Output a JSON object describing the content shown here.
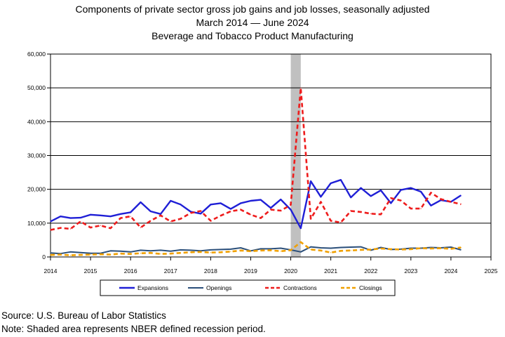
{
  "title": {
    "line1": "Components of private sector gross job gains and job losses, seasonally adjusted",
    "line2": "March 2014 — June 2024",
    "line3": "Beverage and Tobacco Product Manufacturing"
  },
  "notes": {
    "source": "Source: U.S. Bureau of Labor Statistics",
    "note": "Note: Shaded area represents NBER defined recession period."
  },
  "chart_data": {
    "type": "line",
    "ylim": [
      0,
      60000
    ],
    "yticks": [
      0,
      10000,
      20000,
      30000,
      40000,
      50000,
      60000
    ],
    "ytick_labels": [
      "0",
      "10,000",
      "20,000",
      "30,000",
      "40,000",
      "50,000",
      "60,000"
    ],
    "xlim": [
      2014,
      2025
    ],
    "xticks": [
      2014,
      2015,
      2016,
      2017,
      2018,
      2019,
      2020,
      2021,
      2022,
      2023,
      2024,
      2025
    ],
    "xtick_labels": [
      "2014",
      "2015",
      "2016",
      "2017",
      "2018",
      "2019",
      "2020",
      "2021",
      "2022",
      "2023",
      "2024",
      "2025"
    ],
    "grid": true,
    "legend_position": "bottom",
    "recession": {
      "start": 2020.0,
      "end": 2020.25,
      "color": "#c0c0c0"
    },
    "x": [
      "2014-Q1",
      "2014-Q2",
      "2014-Q3",
      "2014-Q4",
      "2015-Q1",
      "2015-Q2",
      "2015-Q3",
      "2015-Q4",
      "2016-Q1",
      "2016-Q2",
      "2016-Q3",
      "2016-Q4",
      "2017-Q1",
      "2017-Q2",
      "2017-Q3",
      "2017-Q4",
      "2018-Q1",
      "2018-Q2",
      "2018-Q3",
      "2018-Q4",
      "2019-Q1",
      "2019-Q2",
      "2019-Q3",
      "2019-Q4",
      "2020-Q1",
      "2020-Q2",
      "2020-Q3",
      "2020-Q4",
      "2021-Q1",
      "2021-Q2",
      "2021-Q3",
      "2021-Q4",
      "2022-Q1",
      "2022-Q2",
      "2022-Q3",
      "2022-Q4",
      "2023-Q1",
      "2023-Q2",
      "2023-Q3",
      "2023-Q4",
      "2024-Q1",
      "2024-Q2"
    ],
    "series": [
      {
        "name": "Expansions",
        "color": "#1f1fd6",
        "dash": "solid",
        "width": 2.4,
        "values": [
          10500,
          12000,
          11500,
          11600,
          12500,
          12300,
          12000,
          12700,
          13200,
          16200,
          13500,
          12700,
          16600,
          15500,
          13400,
          12800,
          15500,
          15900,
          14200,
          15900,
          16600,
          16900,
          14500,
          17000,
          14000,
          8500,
          22400,
          17800,
          21800,
          22800,
          17600,
          20400,
          18000,
          19700,
          15900,
          19800,
          20400,
          19300,
          15200,
          16800,
          16300,
          18200
        ]
      },
      {
        "name": "Openings",
        "color": "#2b4f7a",
        "dash": "solid",
        "width": 2.0,
        "values": [
          1200,
          1000,
          1500,
          1300,
          1100,
          1100,
          1800,
          1700,
          1500,
          2000,
          1800,
          2000,
          1700,
          2100,
          2000,
          1800,
          2100,
          2200,
          2300,
          2700,
          1800,
          2400,
          2400,
          2600,
          2100,
          1500,
          3000,
          2700,
          2600,
          2800,
          2900,
          3000,
          2000,
          2800,
          2200,
          2300,
          2600,
          2600,
          2800,
          2700,
          2900,
          2100
        ]
      },
      {
        "name": "Contractions",
        "color": "#ee1c1c",
        "dash": "dashed",
        "width": 2.6,
        "values": [
          8000,
          8600,
          8300,
          10500,
          8700,
          9300,
          8500,
          11500,
          12000,
          8700,
          10700,
          12300,
          10500,
          11300,
          13000,
          13600,
          10700,
          12200,
          13500,
          14000,
          12500,
          11500,
          14000,
          13700,
          15400,
          50000,
          11300,
          16300,
          10700,
          10200,
          13600,
          13300,
          12800,
          12600,
          17400,
          16700,
          14300,
          14300,
          19000,
          17100,
          16300,
          15600
        ]
      },
      {
        "name": "Closings",
        "color": "#f0a000",
        "dash": "dashed",
        "width": 2.6,
        "values": [
          600,
          700,
          500,
          600,
          700,
          800,
          700,
          1000,
          900,
          1100,
          1200,
          900,
          1000,
          1200,
          1400,
          1500,
          1300,
          1400,
          1600,
          1900,
          1700,
          1900,
          2000,
          1700,
          2000,
          4400,
          2200,
          1900,
          1300,
          1800,
          1900,
          2100,
          2200,
          2500,
          2300,
          2200,
          2300,
          2600,
          2500,
          2600,
          2400,
          2800
        ]
      }
    ]
  }
}
